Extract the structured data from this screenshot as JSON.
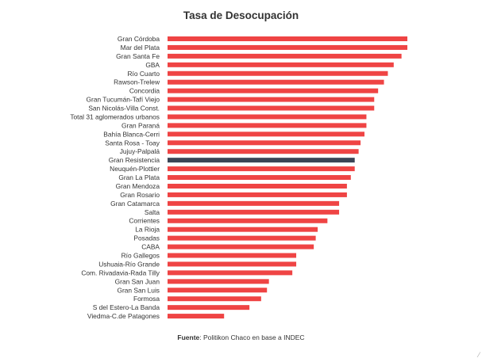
{
  "chart_data": {
    "type": "bar",
    "orientation": "horizontal",
    "title": "Tasa de Desocupación",
    "xlabel": "",
    "ylabel": "",
    "grid": false,
    "legend": "none",
    "bar_color": "#ef4444",
    "highlight_color": "#3a4556",
    "highlight_category": "Gran Resistencia",
    "xlim": [
      0,
      12.3
    ],
    "categories": [
      "Gran Córdoba",
      "Mar del Plata",
      "Gran Santa Fe",
      "GBA",
      "Río Cuarto",
      "Rawson-Trelew",
      "Concordia",
      "Gran Tucumán-Tafí Viejo",
      "San Nicolás-Villa Const.",
      "Total 31 aglomerados urbanos",
      "Gran Paraná",
      "Bahía Blanca-Cerri",
      "Santa Rosa - Toay",
      "Jujuy-Palpalá",
      "Gran Resistencia",
      "Neuquén-Plottier",
      "Gran La Plata",
      "Gran Mendoza",
      "Gran Rosario",
      "Gran Catamarca",
      "Salta",
      "Corrientes",
      "La Rioja",
      "Posadas",
      "CABA",
      "Río Gallegos",
      "Ushuaia-Río Grande",
      "Com. Rivadavia-Rada Tilly",
      "Gran San Juan",
      "Gran San Luis",
      "Formosa",
      "S del Estero-La Banda",
      "Viedma-C.de Patagones"
    ],
    "values": [
      12.3,
      12.3,
      12.0,
      11.6,
      11.3,
      11.1,
      10.8,
      10.6,
      10.6,
      10.2,
      10.2,
      10.1,
      9.9,
      9.8,
      9.6,
      9.6,
      9.4,
      9.2,
      9.2,
      8.8,
      8.8,
      8.2,
      7.7,
      7.6,
      7.5,
      6.6,
      6.6,
      6.4,
      5.2,
      5.1,
      4.8,
      4.2,
      2.9
    ]
  },
  "source": {
    "label": "Fuente",
    "text": ": Politikon Chaco en base a INDEC"
  },
  "corner_mark": "⁄"
}
